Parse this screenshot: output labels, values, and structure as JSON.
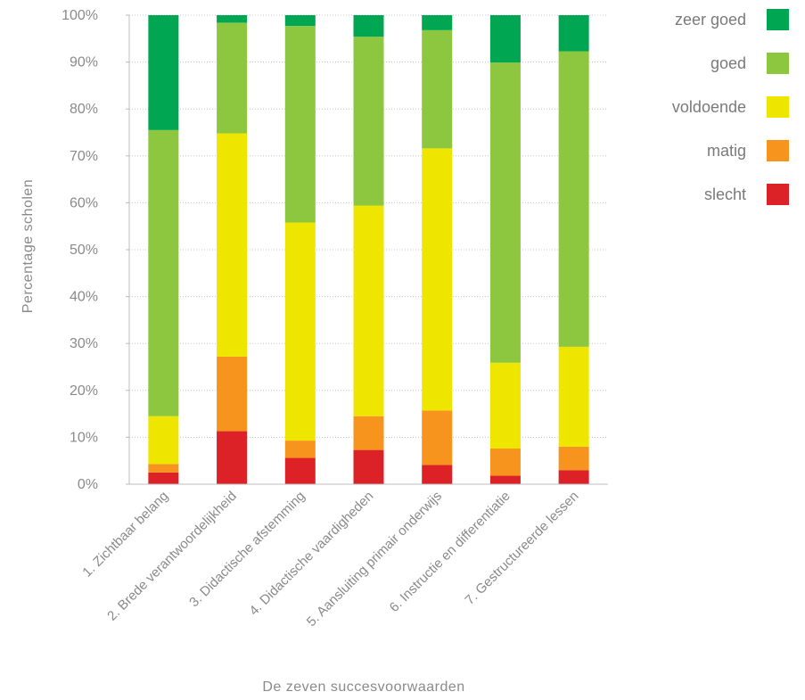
{
  "chart_data": {
    "type": "bar",
    "stacked": true,
    "xlabel": "De zeven succesvoorwaarden",
    "ylabel": "Percentage scholen",
    "ylim": [
      0,
      100
    ],
    "yticks": [
      "0%",
      "10%",
      "20%",
      "30%",
      "40%",
      "50%",
      "60%",
      "70%",
      "80%",
      "90%",
      "100%"
    ],
    "grid": true,
    "legend_position": "right",
    "categories": [
      "1. Zichtbaar belang",
      "2. Brede verantwoordelijkheid",
      "3. Didactische afstemming",
      "4. Didactische vaardigheden",
      "5. Aansluiting primair onderwijs",
      "6. Instructie en differentiatie",
      "7. Gestructureerde lessen"
    ],
    "series": [
      {
        "name": "slecht",
        "color": "#dc2127",
        "values": [
          2.5,
          11.3,
          5.6,
          7.3,
          4.1,
          1.8,
          3.0
        ]
      },
      {
        "name": "matig",
        "color": "#f7941d",
        "values": [
          1.8,
          15.9,
          3.7,
          7.2,
          11.6,
          5.8,
          5.0
        ]
      },
      {
        "name": "voldoende",
        "color": "#efe600",
        "values": [
          10.2,
          47.6,
          46.5,
          44.9,
          55.9,
          18.3,
          21.3
        ]
      },
      {
        "name": "goed",
        "color": "#8dc63f",
        "values": [
          61.0,
          23.6,
          41.9,
          36.0,
          25.2,
          64.0,
          63.0
        ]
      },
      {
        "name": "zeer goed",
        "color": "#00a651",
        "values": [
          24.5,
          1.6,
          2.3,
          4.6,
          3.2,
          10.1,
          7.7
        ]
      }
    ],
    "legend_order": [
      "zeer goed",
      "goed",
      "voldoende",
      "matig",
      "slecht"
    ]
  }
}
